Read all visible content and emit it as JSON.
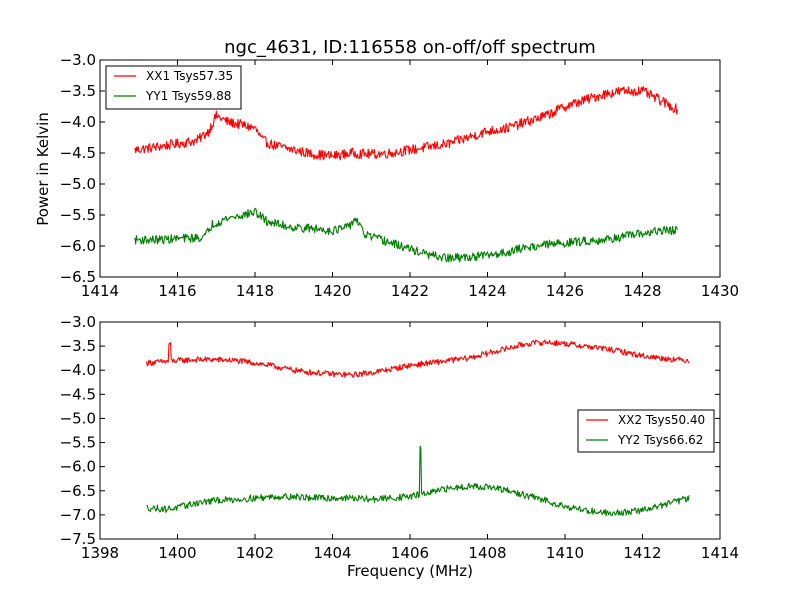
{
  "title": "ngc_4631, ID:116558 on-off/off spectrum",
  "colors": {
    "xx": "#ff0000",
    "yy": "#007f00"
  },
  "chart_data": [
    {
      "type": "line",
      "title": "ngc_4631, ID:116558 on-off/off spectrum",
      "xlabel": "",
      "ylabel": "Power in Kelvin",
      "xlim": [
        1414,
        1430
      ],
      "ylim": [
        -6.5,
        -3.0
      ],
      "xticks": [
        1414,
        1416,
        1418,
        1420,
        1422,
        1424,
        1426,
        1428,
        1430
      ],
      "yticks": [
        -6.5,
        -6.0,
        -5.5,
        -5.0,
        -4.5,
        -4.0,
        -3.5,
        -3.0
      ],
      "xtick_labels": [
        "1414",
        "1416",
        "1418",
        "1420",
        "1422",
        "1424",
        "1426",
        "1428",
        "1430"
      ],
      "ytick_labels": [
        "−6.5",
        "−6.0",
        "−5.5",
        "−5.0",
        "−4.5",
        "−4.0",
        "−3.5",
        "−3.0"
      ],
      "legend": "top-left",
      "grid": false,
      "series": [
        {
          "name": "XX1 Tsys57.35",
          "color": "#ff0000",
          "x": [
            1414.9,
            1415.5,
            1416.0,
            1416.5,
            1416.8,
            1417.0,
            1417.3,
            1417.7,
            1418.0,
            1418.2,
            1418.5,
            1419.0,
            1419.5,
            1420.0,
            1420.5,
            1421.0,
            1421.5,
            1422.0,
            1422.5,
            1423.0,
            1423.5,
            1424.0,
            1424.5,
            1425.0,
            1425.5,
            1426.0,
            1426.5,
            1427.0,
            1427.5,
            1428.0,
            1428.3,
            1428.6,
            1428.9
          ],
          "y": [
            -4.45,
            -4.4,
            -4.35,
            -4.3,
            -4.15,
            -3.9,
            -4.0,
            -4.05,
            -4.1,
            -4.3,
            -4.38,
            -4.45,
            -4.52,
            -4.55,
            -4.5,
            -4.52,
            -4.5,
            -4.45,
            -4.4,
            -4.35,
            -4.25,
            -4.15,
            -4.1,
            -4.0,
            -3.9,
            -3.75,
            -3.65,
            -3.55,
            -3.5,
            -3.5,
            -3.6,
            -3.7,
            -3.8
          ],
          "noise": 0.08
        },
        {
          "name": "YY1 Tsys59.88",
          "color": "#007f00",
          "x": [
            1414.9,
            1415.5,
            1416.0,
            1416.5,
            1416.7,
            1416.9,
            1417.3,
            1417.7,
            1418.0,
            1418.3,
            1418.6,
            1419.0,
            1419.5,
            1420.0,
            1420.4,
            1420.6,
            1420.8,
            1421.0,
            1421.5,
            1422.0,
            1422.5,
            1423.0,
            1423.5,
            1424.0,
            1424.5,
            1425.0,
            1425.5,
            1426.0,
            1426.5,
            1427.0,
            1427.5,
            1428.0,
            1428.5,
            1428.9
          ],
          "y": [
            -5.9,
            -5.9,
            -5.88,
            -5.87,
            -5.85,
            -5.65,
            -5.55,
            -5.5,
            -5.45,
            -5.6,
            -5.65,
            -5.7,
            -5.72,
            -5.75,
            -5.7,
            -5.55,
            -5.8,
            -5.85,
            -5.95,
            -6.05,
            -6.15,
            -6.2,
            -6.18,
            -6.15,
            -6.1,
            -6.02,
            -5.98,
            -5.95,
            -5.92,
            -5.9,
            -5.85,
            -5.8,
            -5.75,
            -5.75
          ],
          "noise": 0.07
        }
      ]
    },
    {
      "type": "line",
      "title": "",
      "xlabel": "Frequency (MHz)",
      "ylabel": "",
      "xlim": [
        1398,
        1414
      ],
      "ylim": [
        -7.5,
        -3.0
      ],
      "xticks": [
        1398,
        1400,
        1402,
        1404,
        1406,
        1408,
        1410,
        1412,
        1414
      ],
      "yticks": [
        -7.5,
        -7.0,
        -6.5,
        -6.0,
        -5.5,
        -5.0,
        -4.5,
        -4.0,
        -3.5,
        -3.0
      ],
      "xtick_labels": [
        "1398",
        "1400",
        "1402",
        "1404",
        "1406",
        "1408",
        "1410",
        "1412",
        "1414"
      ],
      "ytick_labels": [
        "−7.5",
        "−7.0",
        "−6.5",
        "−6.0",
        "−5.5",
        "−5.0",
        "−4.5",
        "−4.0",
        "−3.5",
        "−3.0"
      ],
      "legend": "right",
      "grid": false,
      "series": [
        {
          "name": "XX2 Tsys50.40",
          "color": "#ff0000",
          "x": [
            1399.2,
            1399.7,
            1400.0,
            1400.5,
            1401.0,
            1401.5,
            1402.0,
            1402.5,
            1403.0,
            1403.5,
            1404.0,
            1404.5,
            1405.0,
            1405.5,
            1406.0,
            1406.5,
            1407.0,
            1407.5,
            1408.0,
            1408.5,
            1409.0,
            1409.5,
            1410.0,
            1410.5,
            1411.0,
            1411.5,
            1412.0,
            1412.5,
            1413.2
          ],
          "y": [
            -3.85,
            -3.82,
            -3.8,
            -3.78,
            -3.78,
            -3.8,
            -3.85,
            -3.92,
            -4.0,
            -4.05,
            -4.08,
            -4.1,
            -4.05,
            -3.98,
            -3.9,
            -3.85,
            -3.8,
            -3.75,
            -3.65,
            -3.55,
            -3.45,
            -3.42,
            -3.45,
            -3.5,
            -3.55,
            -3.62,
            -3.7,
            -3.75,
            -3.8
          ],
          "noise": 0.06,
          "spikes": [
            {
              "x": 1399.8,
              "y": -3.45
            }
          ]
        },
        {
          "name": "YY2 Tsys66.62",
          "color": "#007f00",
          "x": [
            1399.2,
            1399.7,
            1400.0,
            1400.5,
            1401.0,
            1401.5,
            1402.0,
            1402.5,
            1403.0,
            1403.5,
            1404.0,
            1404.5,
            1405.0,
            1405.5,
            1406.0,
            1406.5,
            1407.0,
            1407.5,
            1408.0,
            1408.5,
            1409.0,
            1409.5,
            1410.0,
            1410.5,
            1411.0,
            1411.5,
            1412.0,
            1412.5,
            1413.2
          ],
          "y": [
            -6.85,
            -6.88,
            -6.85,
            -6.75,
            -6.7,
            -6.68,
            -6.65,
            -6.62,
            -6.62,
            -6.65,
            -6.65,
            -6.65,
            -6.68,
            -6.65,
            -6.62,
            -6.55,
            -6.45,
            -6.4,
            -6.42,
            -6.5,
            -6.6,
            -6.7,
            -6.82,
            -6.9,
            -6.95,
            -6.95,
            -6.9,
            -6.8,
            -6.65
          ],
          "noise": 0.07,
          "spikes": [
            {
              "x": 1406.27,
              "y": -5.6
            }
          ]
        }
      ]
    }
  ]
}
